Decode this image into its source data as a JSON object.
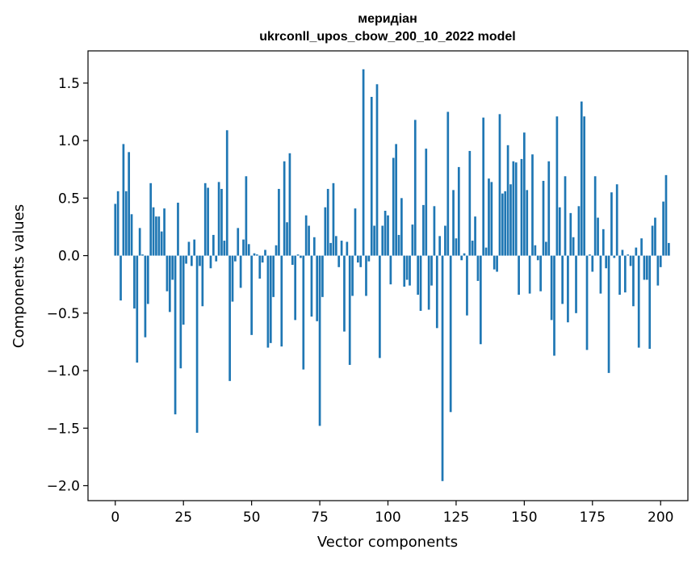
{
  "chart_data": {
    "type": "bar",
    "title": "меридіан",
    "subtitle": "ukrconll_upos_cbow_200_10_2022 model",
    "xlabel": "Vector components",
    "ylabel": "Components values",
    "xlim": [
      -10,
      210
    ],
    "ylim": [
      -2.13,
      1.78
    ],
    "xticks": [
      0,
      25,
      50,
      75,
      100,
      125,
      150,
      175,
      200
    ],
    "yticks": [
      -2.0,
      -1.5,
      -1.0,
      -0.5,
      0.0,
      0.5,
      1.0,
      1.5
    ],
    "ytick_labels": [
      "−2.0",
      "−1.5",
      "−1.0",
      "−0.5",
      "0.0",
      "0.5",
      "1.0",
      "1.5"
    ],
    "grid": false,
    "bar_color": "#1f77b4",
    "values": [
      0.45,
      0.56,
      -0.39,
      0.97,
      0.56,
      0.9,
      0.36,
      -0.46,
      -0.93,
      0.24,
      0.01,
      -0.71,
      -0.42,
      0.63,
      0.42,
      0.34,
      0.34,
      0.21,
      0.41,
      -0.31,
      -0.49,
      -0.21,
      -1.38,
      0.46,
      -0.98,
      -0.6,
      -0.07,
      0.12,
      -0.09,
      0.14,
      -1.54,
      -0.09,
      -0.44,
      0.63,
      0.59,
      -0.11,
      0.18,
      -0.05,
      0.64,
      0.58,
      0.13,
      1.09,
      -1.09,
      -0.4,
      -0.05,
      0.24,
      -0.28,
      0.14,
      0.69,
      0.1,
      -0.69,
      0.02,
      0.01,
      -0.2,
      -0.06,
      0.05,
      -0.8,
      -0.76,
      -0.36,
      0.09,
      0.58,
      -0.79,
      0.82,
      0.29,
      0.89,
      -0.08,
      -0.56,
      0.01,
      -0.02,
      -0.99,
      0.35,
      0.26,
      -0.53,
      0.16,
      -0.57,
      -1.48,
      -0.36,
      0.42,
      0.58,
      0.11,
      0.63,
      0.17,
      -0.1,
      0.13,
      -0.66,
      0.12,
      -0.95,
      -0.35,
      0.41,
      -0.06,
      -0.1,
      1.62,
      -0.35,
      -0.05,
      1.38,
      0.26,
      1.49,
      -0.89,
      0.26,
      0.39,
      0.35,
      -0.25,
      0.85,
      0.97,
      0.18,
      0.5,
      -0.27,
      -0.21,
      -0.26,
      0.27,
      1.18,
      -0.34,
      -0.48,
      0.44,
      0.93,
      -0.47,
      -0.26,
      0.43,
      -0.63,
      0.17,
      -1.96,
      0.26,
      1.25,
      -1.36,
      0.57,
      0.15,
      0.77,
      -0.04,
      0.02,
      -0.52,
      0.91,
      0.13,
      0.34,
      -0.22,
      -0.77,
      1.2,
      0.07,
      0.67,
      0.64,
      -0.12,
      -0.14,
      1.23,
      0.54,
      0.56,
      0.96,
      0.62,
      0.82,
      0.81,
      -0.34,
      0.84,
      1.07,
      0.57,
      -0.33,
      0.88,
      0.09,
      -0.04,
      -0.31,
      0.65,
      0.12,
      0.82,
      -0.56,
      -0.87,
      1.21,
      0.42,
      -0.42,
      0.69,
      -0.58,
      0.37,
      0.16,
      -0.5,
      0.43,
      1.34,
      1.21,
      -0.82,
      0.01,
      -0.14,
      0.69,
      0.33,
      -0.33,
      0.23,
      -0.11,
      -1.02,
      0.55,
      -0.02,
      0.62,
      -0.34,
      0.05,
      -0.32,
      0.01,
      -0.09,
      -0.44,
      0.07,
      -0.8,
      0.15,
      -0.21,
      -0.21,
      -0.81,
      0.26,
      0.33,
      -0.26,
      -0.1,
      0.47,
      0.7,
      0.11
    ]
  }
}
